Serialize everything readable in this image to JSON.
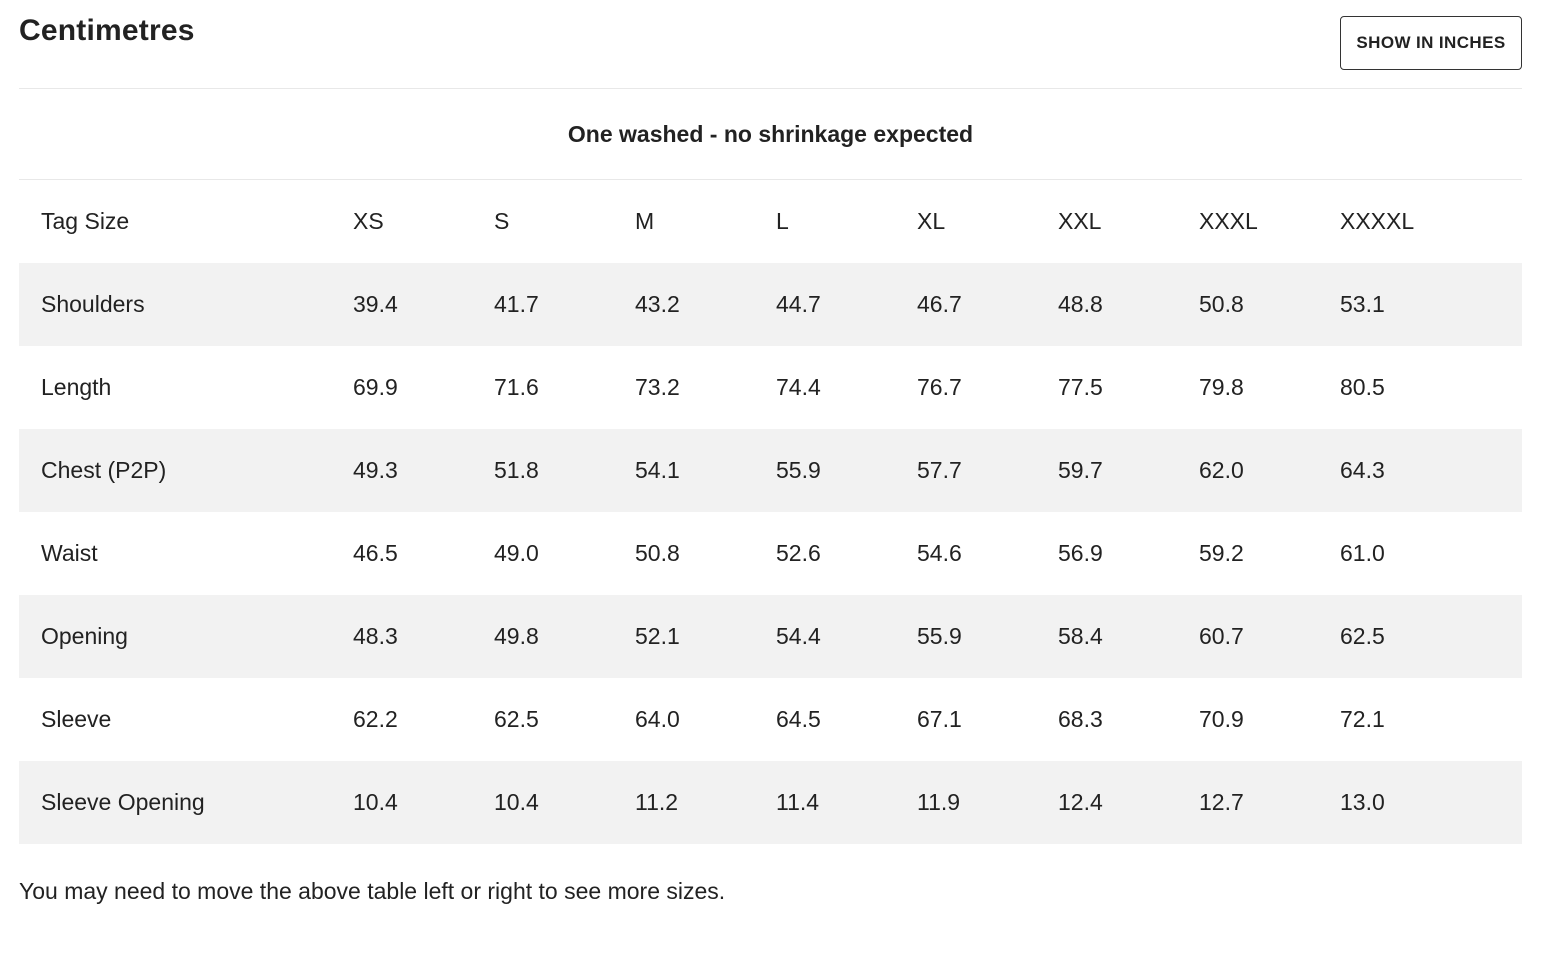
{
  "header": {
    "title": "Centimetres",
    "toggle_label": "SHOW IN INCHES"
  },
  "caption": "One washed - no shrinkage expected",
  "table": {
    "columns": [
      "Tag Size",
      "XS",
      "S",
      "M",
      "L",
      "XL",
      "XXL",
      "XXXL",
      "XXXXL"
    ],
    "rows": [
      [
        "Shoulders",
        "39.4",
        "41.7",
        "43.2",
        "44.7",
        "46.7",
        "48.8",
        "50.8",
        "53.1"
      ],
      [
        "Length",
        "69.9",
        "71.6",
        "73.2",
        "74.4",
        "76.7",
        "77.5",
        "79.8",
        "80.5"
      ],
      [
        "Chest (P2P)",
        "49.3",
        "51.8",
        "54.1",
        "55.9",
        "57.7",
        "59.7",
        "62.0",
        "64.3"
      ],
      [
        "Waist",
        "46.5",
        "49.0",
        "50.8",
        "52.6",
        "54.6",
        "56.9",
        "59.2",
        "61.0"
      ],
      [
        "Opening",
        "48.3",
        "49.8",
        "52.1",
        "54.4",
        "55.9",
        "58.4",
        "60.7",
        "62.5"
      ],
      [
        "Sleeve",
        "62.2",
        "62.5",
        "64.0",
        "64.5",
        "67.1",
        "68.3",
        "70.9",
        "72.1"
      ],
      [
        "Sleeve Opening",
        "10.4",
        "10.4",
        "11.2",
        "11.4",
        "11.9",
        "12.4",
        "12.7",
        "13.0"
      ]
    ]
  },
  "footnote": "You may need to move the above table left or right to see more sizes.",
  "colors": {
    "text": "#222222",
    "row_stripe": "#f2f2f2",
    "divider": "#e8e8e8",
    "button_border": "#333333"
  }
}
